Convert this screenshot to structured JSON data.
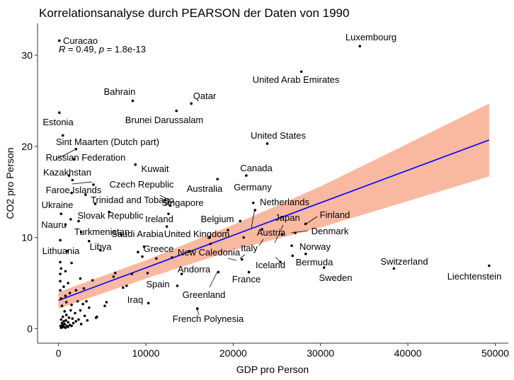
{
  "chart_data": {
    "type": "scatter",
    "title": "Korrelationsanalyse durch PEARSON der Daten von 1990",
    "xlabel": "GDP pro Person",
    "ylabel": "CO2 pro Person",
    "xlim": [
      -2400,
      51500
    ],
    "ylim": [
      -1.6,
      33.5
    ],
    "xticks": [
      0,
      10000,
      20000,
      30000,
      40000,
      50000
    ],
    "xtick_labels": [
      "0",
      "10000",
      "20000",
      "30000",
      "40000",
      "50000"
    ],
    "yticks": [
      0,
      10,
      20,
      30
    ],
    "ytick_labels": [
      "0",
      "10",
      "20",
      "30"
    ],
    "grid": false,
    "annotation": {
      "r": "0.49",
      "p": "1.8e-13"
    },
    "colors": {
      "regression_line": "#0000ff",
      "confidence_band": "#f9b9a0",
      "points": "#000000"
    },
    "regression": {
      "x": [
        0,
        49300
      ],
      "y": [
        3.1,
        20.7
      ]
    },
    "confidence_band": {
      "x": [
        0,
        10000,
        20000,
        30000,
        40000,
        49300
      ],
      "lower": [
        2.2,
        5.5,
        8.6,
        11.1,
        14.0,
        16.7
      ],
      "upper": [
        4.0,
        7.5,
        11.4,
        15.6,
        20.3,
        24.7
      ]
    },
    "labeled_points": [
      {
        "name": "Curacao",
        "x": 100,
        "y": 31.6
      },
      {
        "name": "Luxembourg",
        "x": 34500,
        "y": 31.0
      },
      {
        "name": "United Arab Emirates",
        "x": 27800,
        "y": 28.2
      },
      {
        "name": "Bahrain",
        "x": 8500,
        "y": 25.0
      },
      {
        "name": "Qatar",
        "x": 15200,
        "y": 24.7
      },
      {
        "name": "Brunei Darussalam",
        "x": 13500,
        "y": 23.9
      },
      {
        "name": "Estonia",
        "x": 100,
        "y": 23.7
      },
      {
        "name": "United States",
        "x": 23900,
        "y": 20.3
      },
      {
        "name": "Sint Maarten (Dutch part)",
        "x": 2000,
        "y": 19.7
      },
      {
        "name": "Russian Federation",
        "x": 1800,
        "y": 18.6
      },
      {
        "name": "Kuwait",
        "x": 8800,
        "y": 18.0
      },
      {
        "name": "Kazakhstan",
        "x": 1600,
        "y": 16.3
      },
      {
        "name": "Canada",
        "x": 21500,
        "y": 16.8
      },
      {
        "name": "Australia",
        "x": 18200,
        "y": 16.4
      },
      {
        "name": "Czech Republic",
        "x": 4000,
        "y": 15.8
      },
      {
        "name": "Faroe Islands",
        "x": 1500,
        "y": 14.9
      },
      {
        "name": "Germany",
        "x": 22300,
        "y": 13.8
      },
      {
        "name": "Trinidad and Tobago",
        "x": 4200,
        "y": 13.7
      },
      {
        "name": "Singapore",
        "x": 12200,
        "y": 14.1
      },
      {
        "name": "Ukraine",
        "x": 300,
        "y": 12.6
      },
      {
        "name": "Netherlands",
        "x": 22500,
        "y": 13.0
      },
      {
        "name": "Finland",
        "x": 28300,
        "y": 11.5
      },
      {
        "name": "Slovak Republic",
        "x": 2300,
        "y": 11.8
      },
      {
        "name": "Ireland",
        "x": 12400,
        "y": 11.2
      },
      {
        "name": "Belgium",
        "x": 20800,
        "y": 11.8
      },
      {
        "name": "Nauru",
        "x": 800,
        "y": 11.4
      },
      {
        "name": "Japan",
        "x": 25600,
        "y": 10.3
      },
      {
        "name": "Denmark",
        "x": 27100,
        "y": 10.5
      },
      {
        "name": "Turkmenistan",
        "x": 2600,
        "y": 10.6
      },
      {
        "name": "Saudi Arabia",
        "x": 7200,
        "y": 10.3
      },
      {
        "name": "United Kingdom",
        "x": 17300,
        "y": 10.0
      },
      {
        "name": "Austria",
        "x": 21200,
        "y": 10.0
      },
      {
        "name": "Libya",
        "x": 4800,
        "y": 8.6
      },
      {
        "name": "Lithuania",
        "x": 1000,
        "y": 8.5
      },
      {
        "name": "Greece",
        "x": 9600,
        "y": 7.9
      },
      {
        "name": "Italy",
        "x": 21000,
        "y": 7.6
      },
      {
        "name": "New Caledonia",
        "x": 13000,
        "y": 7.8
      },
      {
        "name": "Norway",
        "x": 28300,
        "y": 8.2
      },
      {
        "name": "Bermuda",
        "x": 26800,
        "y": 8.0
      },
      {
        "name": "Iceland",
        "x": 25400,
        "y": 7.3
      },
      {
        "name": "Switzerland",
        "x": 38400,
        "y": 6.6
      },
      {
        "name": "Sweden",
        "x": 30400,
        "y": 6.7
      },
      {
        "name": "Liechtenstein",
        "x": 49300,
        "y": 6.9
      },
      {
        "name": "Andorra",
        "x": 14100,
        "y": 6.0
      },
      {
        "name": "France",
        "x": 21800,
        "y": 6.2
      },
      {
        "name": "Spain",
        "x": 13600,
        "y": 4.7
      },
      {
        "name": "Greenland",
        "x": 18300,
        "y": 6.2
      },
      {
        "name": "Iraq",
        "x": 10300,
        "y": 2.8
      },
      {
        "name": "French Polynesia",
        "x": 15900,
        "y": 2.2
      }
    ],
    "unlabeled_points": [
      [
        300,
        0.1
      ],
      [
        450,
        0.15
      ],
      [
        600,
        0.2
      ],
      [
        800,
        0.1
      ],
      [
        250,
        0.3
      ],
      [
        500,
        0.4
      ],
      [
        700,
        0.5
      ],
      [
        950,
        0.3
      ],
      [
        1100,
        0.2
      ],
      [
        400,
        0.6
      ],
      [
        600,
        0.8
      ],
      [
        850,
        0.9
      ],
      [
        1100,
        0.7
      ],
      [
        300,
        1.0
      ],
      [
        1300,
        0.4
      ],
      [
        1500,
        0.3
      ],
      [
        1700,
        0.6
      ],
      [
        500,
        1.3
      ],
      [
        900,
        1.5
      ],
      [
        1200,
        1.2
      ],
      [
        1600,
        1.1
      ],
      [
        2000,
        0.8
      ],
      [
        2300,
        1.0
      ],
      [
        2600,
        0.5
      ],
      [
        3000,
        1.4
      ],
      [
        3300,
        0.9
      ],
      [
        700,
        1.9
      ],
      [
        1400,
        2.0
      ],
      [
        1900,
        1.7
      ],
      [
        2500,
        2.0
      ],
      [
        3500,
        2.3
      ],
      [
        400,
        2.5
      ],
      [
        900,
        2.9
      ],
      [
        1500,
        2.6
      ],
      [
        2200,
        3.0
      ],
      [
        2800,
        2.7
      ],
      [
        3200,
        3.0
      ],
      [
        4400,
        1.3
      ],
      [
        5300,
        2.5
      ],
      [
        5500,
        2.9
      ],
      [
        300,
        3.3
      ],
      [
        800,
        3.6
      ],
      [
        1300,
        3.9
      ],
      [
        2000,
        4.2
      ],
      [
        200,
        4.2
      ],
      [
        600,
        4.6
      ],
      [
        1100,
        5.0
      ],
      [
        200,
        5.2
      ],
      [
        2500,
        5.5
      ],
      [
        6300,
        5.7
      ],
      [
        6500,
        6.1
      ],
      [
        200,
        6.0
      ],
      [
        800,
        6.3
      ],
      [
        7400,
        4.5
      ],
      [
        7800,
        4.7
      ],
      [
        8400,
        6.0
      ],
      [
        10200,
        6.1
      ],
      [
        300,
        6.6
      ],
      [
        1500,
        7.2
      ],
      [
        200,
        7.3
      ],
      [
        9100,
        8.4
      ],
      [
        11200,
        7.7
      ],
      [
        15000,
        8.5
      ],
      [
        17400,
        9.3
      ],
      [
        200,
        9.7
      ],
      [
        3500,
        9.6
      ],
      [
        9800,
        9.0
      ],
      [
        19400,
        10.8
      ],
      [
        23300,
        10.9
      ],
      [
        26700,
        9.1
      ],
      [
        3900,
        5.3
      ],
      [
        1400,
        12.0
      ],
      [
        5800,
        12.8
      ],
      [
        12800,
        13.5
      ],
      [
        3100,
        14.7
      ],
      [
        500,
        21.2
      ],
      [
        1200,
        16.8
      ],
      [
        12600,
        12.6
      ],
      [
        4300,
        1.2
      ],
      [
        2900,
        4.4
      ]
    ]
  }
}
